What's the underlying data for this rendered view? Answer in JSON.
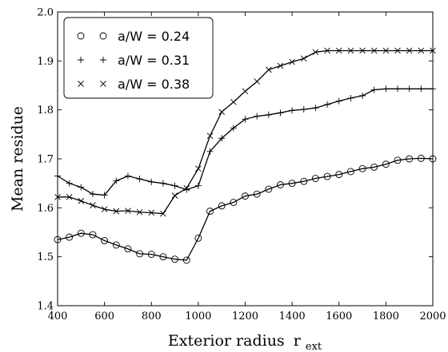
{
  "chart_data": {
    "type": "line",
    "xlabel": "Exterior radius",
    "xlabel_sub": "ext",
    "xlabel_base": "r",
    "ylabel": "Mean residue",
    "xlim": [
      400,
      2000
    ],
    "ylim": [
      1.4,
      2.0
    ],
    "x_ticks": [
      400,
      600,
      800,
      1000,
      1200,
      1400,
      1600,
      1800,
      2000
    ],
    "y_ticks": [
      "1.4",
      "1.5",
      "1.6",
      "1.7",
      "1.8",
      "1.9",
      "2.0"
    ],
    "y_tick_values": [
      1.4,
      1.5,
      1.6,
      1.7,
      1.8,
      1.9,
      2.0
    ],
    "grid": false,
    "legend_position": "top-left",
    "x": [
      400,
      450,
      500,
      550,
      600,
      650,
      700,
      750,
      800,
      850,
      900,
      950,
      1000,
      1050,
      1100,
      1150,
      1200,
      1250,
      1300,
      1350,
      1400,
      1450,
      1500,
      1550,
      1600,
      1650,
      1700,
      1750,
      1800,
      1850,
      1900,
      1950,
      2000
    ],
    "series": [
      {
        "name": "a/W = 0.24",
        "marker": "circle",
        "values": [
          1.535,
          1.54,
          1.548,
          1.545,
          1.533,
          1.524,
          1.516,
          1.506,
          1.505,
          1.5,
          1.495,
          1.493,
          1.538,
          1.593,
          1.604,
          1.611,
          1.624,
          1.628,
          1.638,
          1.647,
          1.65,
          1.654,
          1.66,
          1.664,
          1.668,
          1.674,
          1.68,
          1.683,
          1.689,
          1.697,
          1.7,
          1.701,
          1.7
        ]
      },
      {
        "name": "a/W = 0.31",
        "marker": "plus",
        "values": [
          1.665,
          1.65,
          1.642,
          1.628,
          1.626,
          1.655,
          1.665,
          1.659,
          1.653,
          1.65,
          1.645,
          1.637,
          1.645,
          1.715,
          1.742,
          1.763,
          1.781,
          1.787,
          1.79,
          1.794,
          1.799,
          1.801,
          1.804,
          1.811,
          1.818,
          1.824,
          1.829,
          1.841,
          1.843,
          1.843,
          1.843,
          1.843,
          1.843
        ]
      },
      {
        "name": "a/W = 0.38",
        "marker": "x",
        "values": [
          1.622,
          1.622,
          1.614,
          1.605,
          1.597,
          1.593,
          1.594,
          1.591,
          1.59,
          1.588,
          1.625,
          1.64,
          1.68,
          1.747,
          1.796,
          1.816,
          1.838,
          1.858,
          1.882,
          1.89,
          1.898,
          1.905,
          1.918,
          1.921,
          1.921,
          1.921,
          1.921,
          1.921,
          1.921,
          1.921,
          1.921,
          1.921,
          1.921
        ]
      }
    ]
  }
}
